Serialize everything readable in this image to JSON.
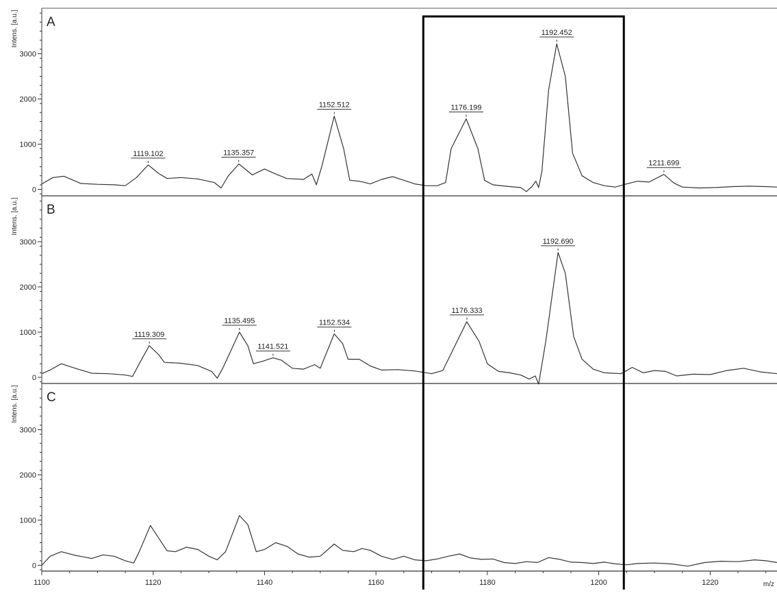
{
  "chart_data": {
    "type": "line",
    "xlabel": "m/z",
    "ylabel": "Intens. [a.u.]",
    "xlim": [
      1100,
      1232
    ],
    "ylim": [
      -150,
      4000
    ],
    "x_ticks": [
      1100,
      1120,
      1140,
      1160,
      1180,
      1200,
      1220
    ],
    "y_ticks": [
      0,
      1000,
      2000,
      3000
    ],
    "highlight_range": [
      1168.5,
      1204.5
    ],
    "panels": [
      {
        "label": "A",
        "peaks": [
          {
            "x": 1119.102,
            "y": 540,
            "label": "1119.102"
          },
          {
            "x": 1135.357,
            "y": 560,
            "label": "1135.357"
          },
          {
            "x": 1152.512,
            "y": 1620,
            "label": "1152.512"
          },
          {
            "x": 1176.199,
            "y": 1560,
            "label": "1176.199"
          },
          {
            "x": 1192.452,
            "y": 3220,
            "label": "1192.452"
          },
          {
            "x": 1211.699,
            "y": 330,
            "label": "1211.699"
          }
        ],
        "spectrum": [
          [
            1100,
            120
          ],
          [
            1102,
            260
          ],
          [
            1104,
            290
          ],
          [
            1107,
            130
          ],
          [
            1110,
            110
          ],
          [
            1113,
            100
          ],
          [
            1115,
            80
          ],
          [
            1117,
            260
          ],
          [
            1119.1,
            540
          ],
          [
            1121,
            350
          ],
          [
            1122.5,
            240
          ],
          [
            1125,
            260
          ],
          [
            1128,
            230
          ],
          [
            1131,
            150
          ],
          [
            1132.2,
            30
          ],
          [
            1133.5,
            300
          ],
          [
            1135.4,
            560
          ],
          [
            1137,
            400
          ],
          [
            1137.8,
            320
          ],
          [
            1140,
            450
          ],
          [
            1142,
            340
          ],
          [
            1144,
            240
          ],
          [
            1147,
            220
          ],
          [
            1148.5,
            340
          ],
          [
            1149.3,
            100
          ],
          [
            1150.3,
            520
          ],
          [
            1152.5,
            1620
          ],
          [
            1154.2,
            900
          ],
          [
            1155.3,
            200
          ],
          [
            1157,
            180
          ],
          [
            1159,
            120
          ],
          [
            1161,
            220
          ],
          [
            1163,
            280
          ],
          [
            1165,
            200
          ],
          [
            1167,
            120
          ],
          [
            1169,
            80
          ],
          [
            1171,
            80
          ],
          [
            1172.5,
            150
          ],
          [
            1173.5,
            900
          ],
          [
            1176.2,
            1560
          ],
          [
            1178.3,
            900
          ],
          [
            1179.5,
            200
          ],
          [
            1181,
            100
          ],
          [
            1184,
            60
          ],
          [
            1186,
            40
          ],
          [
            1187,
            -50
          ],
          [
            1188,
            60
          ],
          [
            1188.7,
            180
          ],
          [
            1189.2,
            40
          ],
          [
            1189.8,
            400
          ],
          [
            1191,
            2200
          ],
          [
            1192.45,
            3220
          ],
          [
            1194,
            2500
          ],
          [
            1195.3,
            800
          ],
          [
            1197,
            300
          ],
          [
            1199,
            150
          ],
          [
            1201,
            80
          ],
          [
            1203,
            50
          ],
          [
            1205,
            120
          ],
          [
            1207,
            180
          ],
          [
            1209,
            160
          ],
          [
            1211.7,
            330
          ],
          [
            1213.5,
            140
          ],
          [
            1215,
            50
          ],
          [
            1218,
            30
          ],
          [
            1221,
            40
          ],
          [
            1224,
            60
          ],
          [
            1227,
            70
          ],
          [
            1230,
            60
          ],
          [
            1232,
            50
          ]
        ]
      },
      {
        "label": "B",
        "peaks": [
          {
            "x": 1119.309,
            "y": 700,
            "label": "1119.309"
          },
          {
            "x": 1135.495,
            "y": 1000,
            "label": "1135.495"
          },
          {
            "x": 1141.521,
            "y": 430,
            "label": "1141.521"
          },
          {
            "x": 1152.534,
            "y": 960,
            "label": "1152.534"
          },
          {
            "x": 1176.333,
            "y": 1230,
            "label": "1176.333"
          },
          {
            "x": 1192.69,
            "y": 2760,
            "label": "1192.690"
          }
        ],
        "spectrum": [
          [
            1100,
            80
          ],
          [
            1101.5,
            160
          ],
          [
            1103.5,
            300
          ],
          [
            1106,
            200
          ],
          [
            1109,
            90
          ],
          [
            1112,
            80
          ],
          [
            1115,
            50
          ],
          [
            1116.3,
            20
          ],
          [
            1117.5,
            300
          ],
          [
            1119.3,
            700
          ],
          [
            1121,
            500
          ],
          [
            1122,
            330
          ],
          [
            1125,
            310
          ],
          [
            1128,
            260
          ],
          [
            1130.5,
            130
          ],
          [
            1131.5,
            -20
          ],
          [
            1132.5,
            200
          ],
          [
            1135.5,
            1000
          ],
          [
            1137,
            700
          ],
          [
            1138,
            300
          ],
          [
            1139.5,
            350
          ],
          [
            1141.5,
            430
          ],
          [
            1143,
            380
          ],
          [
            1145,
            200
          ],
          [
            1147,
            180
          ],
          [
            1149,
            280
          ],
          [
            1150,
            200
          ],
          [
            1152.5,
            960
          ],
          [
            1154,
            750
          ],
          [
            1155,
            400
          ],
          [
            1157,
            400
          ],
          [
            1159,
            250
          ],
          [
            1161,
            160
          ],
          [
            1164,
            170
          ],
          [
            1167,
            140
          ],
          [
            1170,
            80
          ],
          [
            1172,
            150
          ],
          [
            1176.3,
            1230
          ],
          [
            1178.5,
            800
          ],
          [
            1180,
            300
          ],
          [
            1182,
            130
          ],
          [
            1184,
            100
          ],
          [
            1186,
            50
          ],
          [
            1187.5,
            -40
          ],
          [
            1188.6,
            30
          ],
          [
            1189.2,
            -150
          ],
          [
            1190.5,
            800
          ],
          [
            1192.7,
            2760
          ],
          [
            1194,
            2300
          ],
          [
            1195.5,
            900
          ],
          [
            1197,
            400
          ],
          [
            1199,
            180
          ],
          [
            1201,
            100
          ],
          [
            1204,
            80
          ],
          [
            1206,
            220
          ],
          [
            1208,
            100
          ],
          [
            1210,
            150
          ],
          [
            1212,
            130
          ],
          [
            1214,
            30
          ],
          [
            1217,
            70
          ],
          [
            1220,
            60
          ],
          [
            1223,
            150
          ],
          [
            1226,
            200
          ],
          [
            1229,
            120
          ],
          [
            1232,
            80
          ]
        ]
      },
      {
        "label": "C",
        "peaks": [],
        "spectrum": [
          [
            1100,
            0
          ],
          [
            1101.5,
            200
          ],
          [
            1103.5,
            300
          ],
          [
            1106,
            220
          ],
          [
            1109,
            150
          ],
          [
            1111,
            230
          ],
          [
            1113,
            200
          ],
          [
            1115,
            100
          ],
          [
            1116.5,
            50
          ],
          [
            1117.5,
            300
          ],
          [
            1119.5,
            880
          ],
          [
            1121,
            600
          ],
          [
            1122.5,
            320
          ],
          [
            1124,
            300
          ],
          [
            1126,
            400
          ],
          [
            1128,
            350
          ],
          [
            1130,
            200
          ],
          [
            1131.5,
            120
          ],
          [
            1133,
            300
          ],
          [
            1135.5,
            1100
          ],
          [
            1137,
            900
          ],
          [
            1138.5,
            300
          ],
          [
            1140,
            350
          ],
          [
            1142,
            500
          ],
          [
            1144,
            420
          ],
          [
            1146,
            250
          ],
          [
            1148,
            180
          ],
          [
            1150,
            200
          ],
          [
            1152.5,
            470
          ],
          [
            1154,
            330
          ],
          [
            1156,
            300
          ],
          [
            1157.5,
            370
          ],
          [
            1159,
            330
          ],
          [
            1161,
            200
          ],
          [
            1163,
            130
          ],
          [
            1165,
            200
          ],
          [
            1167,
            120
          ],
          [
            1169,
            100
          ],
          [
            1171,
            140
          ],
          [
            1173,
            200
          ],
          [
            1175,
            250
          ],
          [
            1177,
            160
          ],
          [
            1179,
            130
          ],
          [
            1181,
            140
          ],
          [
            1183,
            60
          ],
          [
            1185,
            40
          ],
          [
            1187,
            80
          ],
          [
            1189,
            60
          ],
          [
            1191,
            170
          ],
          [
            1193,
            130
          ],
          [
            1195,
            70
          ],
          [
            1197,
            60
          ],
          [
            1199,
            40
          ],
          [
            1201,
            70
          ],
          [
            1203,
            30
          ],
          [
            1205,
            10
          ],
          [
            1207,
            40
          ],
          [
            1210,
            50
          ],
          [
            1213,
            30
          ],
          [
            1216,
            -20
          ],
          [
            1219,
            60
          ],
          [
            1222,
            90
          ],
          [
            1225,
            80
          ],
          [
            1228,
            120
          ],
          [
            1230,
            100
          ],
          [
            1232,
            60
          ]
        ]
      }
    ]
  }
}
